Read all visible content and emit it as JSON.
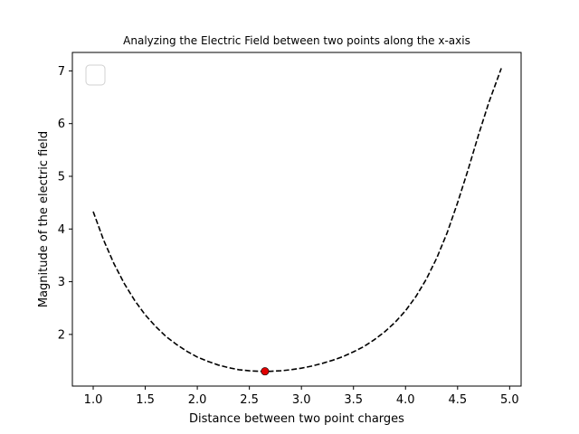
{
  "chart_data": {
    "type": "line",
    "title": "Analyzing the Electric Field between two points along the x-axis",
    "xlabel": "Distance between two point charges",
    "ylabel": "Magnitude of the electric field",
    "xlim": [
      0.8,
      5.11
    ],
    "ylim": [
      1.02,
      7.35
    ],
    "xticks": [
      1.0,
      1.5,
      2.0,
      2.5,
      3.0,
      3.5,
      4.0,
      4.5,
      5.0
    ],
    "xtick_labels": [
      "1.0",
      "1.5",
      "2.0",
      "2.5",
      "3.0",
      "3.5",
      "4.0",
      "4.5",
      "5.0"
    ],
    "yticks": [
      2,
      3,
      4,
      5,
      6,
      7
    ],
    "ytick_labels": [
      "2",
      "3",
      "4",
      "5",
      "6",
      "7"
    ],
    "grid": false,
    "legend": {
      "placement": "upper-left",
      "entries": []
    },
    "series": [
      {
        "line_style": "dashed",
        "color": "#000000",
        "x": [
          1.0,
          1.1,
          1.2,
          1.3,
          1.4,
          1.5,
          1.6,
          1.7,
          1.8,
          1.9,
          2.0,
          2.1,
          2.2,
          2.3,
          2.4,
          2.5,
          2.6,
          2.7,
          2.8,
          2.9,
          3.0,
          3.1,
          3.2,
          3.3,
          3.4,
          3.5,
          3.6,
          3.7,
          3.8,
          3.9,
          4.0,
          4.1,
          4.2,
          4.3,
          4.4,
          4.5,
          4.6,
          4.7,
          4.8,
          4.92
        ],
        "y": [
          4.33,
          3.79,
          3.34,
          2.96,
          2.64,
          2.37,
          2.15,
          1.96,
          1.81,
          1.68,
          1.57,
          1.49,
          1.42,
          1.37,
          1.33,
          1.31,
          1.3,
          1.3,
          1.31,
          1.33,
          1.36,
          1.4,
          1.45,
          1.51,
          1.58,
          1.67,
          1.77,
          1.9,
          2.05,
          2.23,
          2.45,
          2.72,
          3.05,
          3.45,
          3.93,
          4.5,
          5.12,
          5.78,
          6.4,
          7.05
        ]
      }
    ],
    "highlight_point": {
      "x": 2.65,
      "y": 1.3,
      "color": "#e00000"
    }
  }
}
